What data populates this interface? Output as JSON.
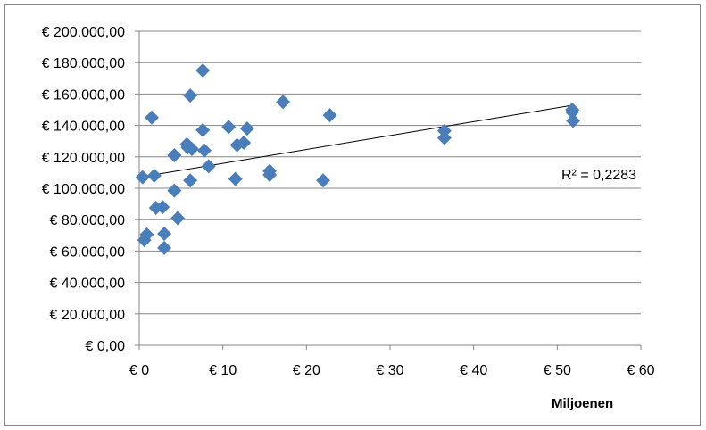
{
  "chart_data": {
    "type": "scatter",
    "title": "",
    "xlabel": "Miljoenen",
    "ylabel": "",
    "xlim": [
      0,
      60
    ],
    "ylim": [
      0,
      200000
    ],
    "x_ticks": [
      "€ 0",
      "€ 10",
      "€ 20",
      "€ 30",
      "€ 40",
      "€ 50",
      "€ 60"
    ],
    "y_ticks": [
      "€ 0,00",
      "€ 20.000,00",
      "€ 40.000,00",
      "€ 60.000,00",
      "€ 80.000,00",
      "€ 100.000,00",
      "€ 120.000,00",
      "€ 140.000,00",
      "€ 160.000,00",
      "€ 180.000,00",
      "€ 200.000,00"
    ],
    "grid": true,
    "marker_color": "#4A7EBB",
    "trendline": {
      "type": "linear",
      "label": "R² = 0,2283",
      "start": [
        0,
        107000
      ],
      "end": [
        52,
        153000
      ]
    },
    "series": [
      {
        "points": [
          [
            0.4,
            107000
          ],
          [
            0.6,
            67000
          ],
          [
            0.9,
            70500
          ],
          [
            1.5,
            145000
          ],
          [
            1.8,
            108000
          ],
          [
            2.0,
            87500
          ],
          [
            2.8,
            88000
          ],
          [
            3.0,
            71000
          ],
          [
            3.0,
            62000
          ],
          [
            4.2,
            121000
          ],
          [
            4.2,
            98500
          ],
          [
            4.6,
            81000
          ],
          [
            5.7,
            128000
          ],
          [
            5.8,
            126000
          ],
          [
            6.1,
            159000
          ],
          [
            6.1,
            105000
          ],
          [
            6.3,
            125000
          ],
          [
            7.6,
            175000
          ],
          [
            7.6,
            137000
          ],
          [
            7.8,
            124000
          ],
          [
            8.3,
            114000
          ],
          [
            10.7,
            139000
          ],
          [
            11.5,
            106000
          ],
          [
            11.7,
            127500
          ],
          [
            12.5,
            129000
          ],
          [
            12.9,
            138000
          ],
          [
            15.6,
            111000
          ],
          [
            15.6,
            108500
          ],
          [
            17.2,
            155000
          ],
          [
            22.0,
            105000
          ],
          [
            22.8,
            146500
          ],
          [
            36.5,
            136500
          ],
          [
            36.5,
            132000
          ],
          [
            51.8,
            150000
          ],
          [
            51.8,
            148500
          ],
          [
            51.9,
            143000
          ]
        ]
      }
    ]
  }
}
